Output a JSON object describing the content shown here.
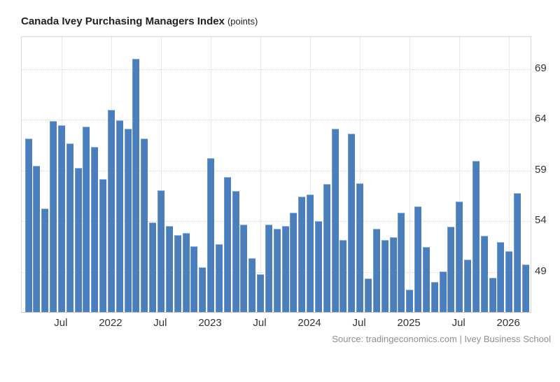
{
  "title": {
    "main": "Canada Ivey Purchasing Managers Index",
    "unit": "(points)"
  },
  "source_line": "Source: tradingeconomics.com | Ivey Business School",
  "colors": {
    "bar": "#4a7ebc",
    "bar_edge_top": "#96b6db",
    "bar_edge_left": "#6f9cce",
    "grid": "#d4d4d4",
    "plot_border": "#d8d8d8",
    "axis_text": "#333333",
    "title_text": "#222222",
    "source_text": "#8f8f8f",
    "background": "#ffffff"
  },
  "chart_data": {
    "type": "bar",
    "title": "Canada Ivey Purchasing Managers Index (points)",
    "xlabel": "",
    "ylabel": "points",
    "grid": "dotted",
    "legend": "none",
    "ylim": [
      44.9,
      72.14
    ],
    "y_axis_ticks": [
      49,
      54,
      59,
      64,
      69
    ],
    "x_axis_tick_labels": [
      "Jul",
      "2022",
      "Jul",
      "2023",
      "Jul",
      "2024",
      "Jul",
      "2025",
      "Jul",
      "2026"
    ],
    "x_axis_tick_month_indices": [
      4,
      10,
      16,
      22,
      28,
      34,
      40,
      46,
      52,
      58
    ],
    "x": [
      "2021-03",
      "2021-04",
      "2021-05",
      "2021-06",
      "2021-07",
      "2021-08",
      "2021-09",
      "2021-10",
      "2021-11",
      "2021-12",
      "2022-01",
      "2022-02",
      "2022-03",
      "2022-04",
      "2022-05",
      "2022-06",
      "2022-07",
      "2022-08",
      "2022-09",
      "2022-10",
      "2022-11",
      "2022-12",
      "2023-01",
      "2023-02",
      "2023-03",
      "2023-04",
      "2023-05",
      "2023-06",
      "2023-07",
      "2023-08",
      "2023-09",
      "2023-10",
      "2023-11",
      "2023-12",
      "2024-01",
      "2024-02",
      "2024-03",
      "2024-04",
      "2024-05",
      "2024-06",
      "2024-07",
      "2024-08",
      "2024-09",
      "2024-10",
      "2024-11",
      "2024-12",
      "2025-01",
      "2025-02",
      "2025-03",
      "2025-04",
      "2025-05",
      "2025-06",
      "2025-07",
      "2025-08",
      "2025-09",
      "2025-10",
      "2025-11",
      "2025-12",
      "2026-01",
      "2026-02",
      "2026-03"
    ],
    "values": [
      62.0,
      59.3,
      55.1,
      63.7,
      63.3,
      61.5,
      59.1,
      63.2,
      61.2,
      58.0,
      64.8,
      63.8,
      63.0,
      69.9,
      62.0,
      53.7,
      56.9,
      53.4,
      52.5,
      52.7,
      51.4,
      49.3,
      60.1,
      51.6,
      58.2,
      56.8,
      53.5,
      50.2,
      48.6,
      53.5,
      53.1,
      53.4,
      54.7,
      56.3,
      56.5,
      53.9,
      57.5,
      63.0,
      52.0,
      62.5,
      57.6,
      48.2,
      53.1,
      52.0,
      52.3,
      54.7,
      47.1,
      55.3,
      51.3,
      47.9,
      48.9,
      53.3,
      55.8,
      50.1,
      59.8,
      52.4,
      48.3,
      51.8,
      50.9,
      56.6,
      49.6
    ]
  }
}
